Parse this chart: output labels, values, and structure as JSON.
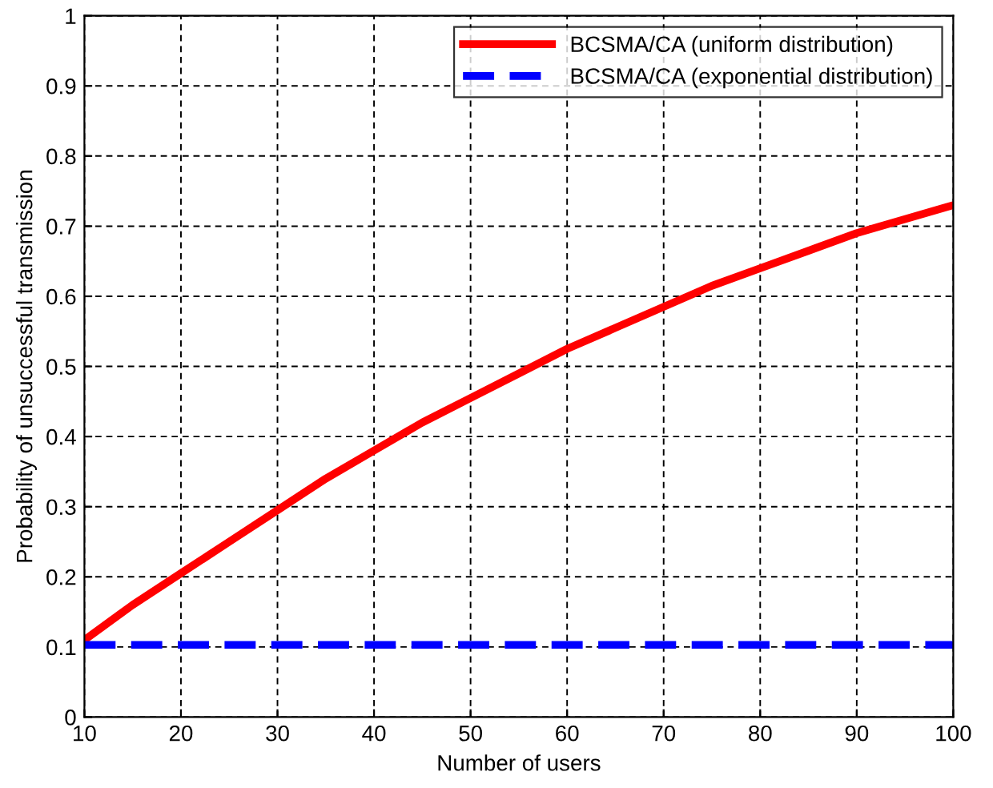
{
  "chart_data": {
    "type": "line",
    "xlabel": "Number of users",
    "ylabel": "Probability of unsuccessful transmission",
    "xlim": [
      10,
      100
    ],
    "xticks": [
      10,
      20,
      30,
      40,
      50,
      60,
      70,
      80,
      90,
      100
    ],
    "ylim": [
      0,
      1
    ],
    "yticks": [
      0,
      0.1,
      0.2,
      0.3,
      0.4,
      0.5,
      0.6,
      0.7,
      0.8,
      0.9,
      1
    ],
    "grid": true,
    "legend": "top right",
    "marker": "none",
    "series": [
      {
        "name": "BCSMA/CA (uniform distribution)",
        "color": "#ff0000",
        "line_style": "solid",
        "x": [
          10,
          15,
          20,
          25,
          30,
          35,
          40,
          45,
          50,
          55,
          60,
          65,
          70,
          75,
          80,
          85,
          90,
          95,
          100
        ],
        "values": [
          0.11,
          0.16,
          0.205,
          0.25,
          0.295,
          0.34,
          0.38,
          0.42,
          0.455,
          0.49,
          0.525,
          0.555,
          0.585,
          0.615,
          0.64,
          0.665,
          0.69,
          0.71,
          0.73
        ]
      },
      {
        "name": "BCSMA/CA (exponential distribution)",
        "color": "#0000ff",
        "line_style": "dashed",
        "x": [
          10,
          100
        ],
        "values": [
          0.103,
          0.103
        ]
      }
    ]
  }
}
